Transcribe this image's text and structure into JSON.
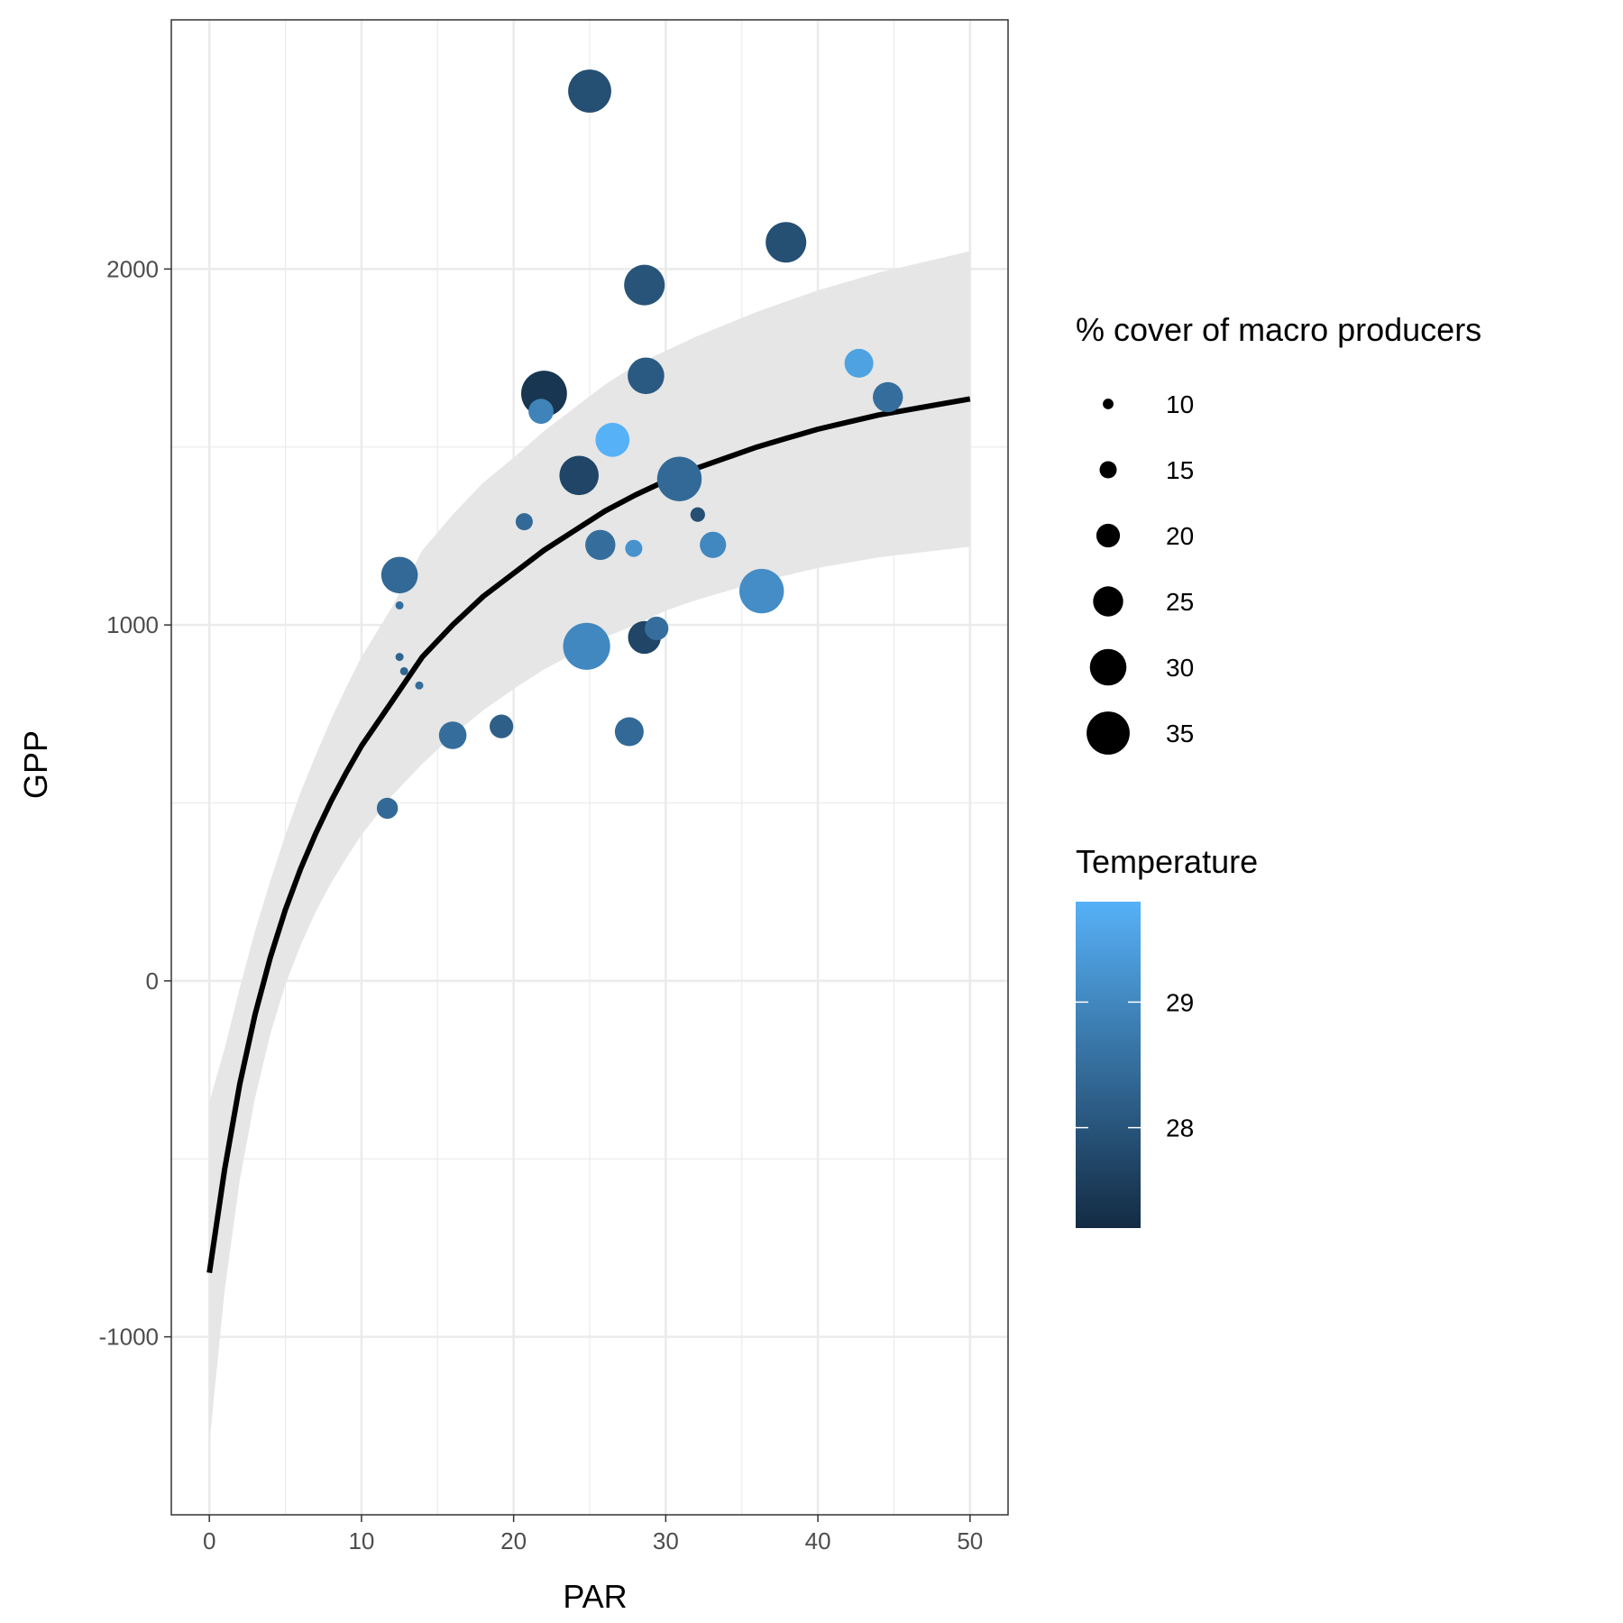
{
  "chart_data": {
    "type": "scatter",
    "xlabel": "PAR",
    "ylabel": "GPP",
    "xlim": [
      -2.5,
      52.5
    ],
    "ylim": [
      -1500,
      2700
    ],
    "x_ticks": [
      0,
      10,
      20,
      30,
      40,
      50
    ],
    "y_ticks": [
      -1000,
      0,
      1000,
      2000
    ],
    "grid": true,
    "legend_position": "right",
    "size_legend": {
      "title": "% cover of macro producers",
      "values": [
        10,
        15,
        20,
        25,
        30,
        35
      ]
    },
    "color_legend": {
      "title": "Temperature",
      "range": [
        27.2,
        29.8
      ],
      "ticks": [
        28,
        29
      ],
      "low_color": "#132b43",
      "high_color": "#56b1f7"
    },
    "points": [
      {
        "x": 25.0,
        "y": 2500,
        "cover": 35,
        "temp": 27.9
      },
      {
        "x": 37.9,
        "y": 2075,
        "cover": 33,
        "temp": 27.9
      },
      {
        "x": 28.6,
        "y": 1955,
        "cover": 33,
        "temp": 28.0
      },
      {
        "x": 42.7,
        "y": 1735,
        "cover": 24,
        "temp": 29.5
      },
      {
        "x": 28.7,
        "y": 1700,
        "cover": 30,
        "temp": 28.1
      },
      {
        "x": 22.0,
        "y": 1650,
        "cover": 37,
        "temp": 27.4
      },
      {
        "x": 44.6,
        "y": 1640,
        "cover": 25,
        "temp": 28.5
      },
      {
        "x": 21.8,
        "y": 1600,
        "cover": 21,
        "temp": 28.9
      },
      {
        "x": 26.5,
        "y": 1520,
        "cover": 28,
        "temp": 29.8
      },
      {
        "x": 24.3,
        "y": 1420,
        "cover": 32,
        "temp": 27.7
      },
      {
        "x": 30.9,
        "y": 1410,
        "cover": 36,
        "temp": 28.4
      },
      {
        "x": 32.1,
        "y": 1310,
        "cover": 13,
        "temp": 27.9
      },
      {
        "x": 20.7,
        "y": 1290,
        "cover": 15,
        "temp": 28.4
      },
      {
        "x": 25.7,
        "y": 1225,
        "cover": 25,
        "temp": 28.5
      },
      {
        "x": 27.9,
        "y": 1215,
        "cover": 15,
        "temp": 29.2
      },
      {
        "x": 33.1,
        "y": 1225,
        "cover": 22,
        "temp": 29.0
      },
      {
        "x": 12.5,
        "y": 1140,
        "cover": 30,
        "temp": 28.4
      },
      {
        "x": 36.3,
        "y": 1095,
        "cover": 36,
        "temp": 29.1
      },
      {
        "x": 12.5,
        "y": 1055,
        "cover": 8,
        "temp": 28.5
      },
      {
        "x": 29.4,
        "y": 990,
        "cover": 20,
        "temp": 28.5
      },
      {
        "x": 28.6,
        "y": 965,
        "cover": 27,
        "temp": 27.7
      },
      {
        "x": 24.8,
        "y": 940,
        "cover": 38,
        "temp": 29.0
      },
      {
        "x": 12.5,
        "y": 910,
        "cover": 8,
        "temp": 28.3
      },
      {
        "x": 12.8,
        "y": 870,
        "cover": 8,
        "temp": 28.3
      },
      {
        "x": 13.8,
        "y": 830,
        "cover": 8,
        "temp": 28.5
      },
      {
        "x": 19.2,
        "y": 715,
        "cover": 20,
        "temp": 28.2
      },
      {
        "x": 27.6,
        "y": 700,
        "cover": 24,
        "temp": 28.4
      },
      {
        "x": 16.0,
        "y": 690,
        "cover": 23,
        "temp": 28.5
      },
      {
        "x": 11.7,
        "y": 485,
        "cover": 18,
        "temp": 28.4
      }
    ],
    "fit_line": {
      "x": [
        0,
        1,
        2,
        3,
        4,
        5,
        6,
        7,
        8,
        9,
        10,
        12,
        14,
        16,
        18,
        20,
        22,
        24,
        26,
        28,
        30,
        32,
        34,
        36,
        38,
        40,
        42,
        44,
        46,
        48,
        50
      ],
      "y": [
        -820,
        -530,
        -290,
        -95,
        65,
        200,
        315,
        415,
        505,
        585,
        660,
        785,
        910,
        1000,
        1080,
        1145,
        1210,
        1265,
        1320,
        1365,
        1405,
        1440,
        1470,
        1500,
        1525,
        1550,
        1570,
        1590,
        1605,
        1620,
        1635
      ],
      "lower": [
        -1300,
        -870,
        -560,
        -330,
        -150,
        -10,
        100,
        195,
        275,
        345,
        410,
        520,
        610,
        690,
        760,
        820,
        875,
        920,
        965,
        1000,
        1040,
        1070,
        1095,
        1120,
        1140,
        1160,
        1175,
        1190,
        1200,
        1210,
        1220
      ],
      "upper": [
        -340,
        -190,
        -20,
        140,
        280,
        410,
        530,
        635,
        735,
        825,
        910,
        1050,
        1210,
        1310,
        1400,
        1470,
        1545,
        1610,
        1675,
        1730,
        1770,
        1810,
        1845,
        1880,
        1910,
        1940,
        1965,
        1990,
        2010,
        2030,
        2050
      ]
    }
  }
}
